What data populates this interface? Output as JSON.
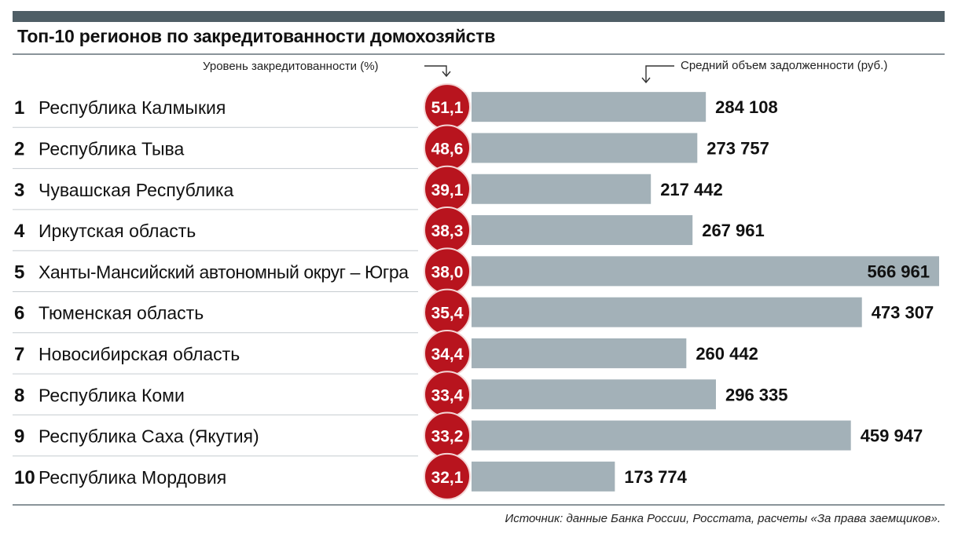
{
  "colors": {
    "top_bar": "#4f5e66",
    "rule": "#8a949a",
    "bar": "#a3b1b8",
    "circle": "#b8141e",
    "circle_border": "#f3d6d6",
    "row_divider": "#c6ccd0",
    "text": "#111111"
  },
  "header": {
    "title": "Топ-10 регионов по закредитованности домохозяйств",
    "left_label": "Уровень закредитованности (%)",
    "right_label": "Средний объем задолженности (руб.)"
  },
  "footer": {
    "source": "Источник: данные Банка России, Росстата, расчеты «За права заемщиков»."
  },
  "chart_data": {
    "type": "bar",
    "orientation": "horizontal",
    "title": "Топ-10 регионов по закредитованности домохозяйств",
    "ranks": [
      "1",
      "2",
      "3",
      "4",
      "5",
      "6",
      "7",
      "8",
      "9",
      "10"
    ],
    "categories": [
      "Республика Калмыкия",
      "Республика Тыва",
      "Чувашская Республика",
      "Иркутская область",
      "Ханты-Мансийский автономный округ – Югра",
      "Тюменская область",
      "Новосибирская область",
      "Республика Коми",
      "Республика Саха (Якутия)",
      "Республика Мордовия"
    ],
    "series": [
      {
        "name": "Уровень закредитованности (%)",
        "values": [
          51.1,
          48.6,
          39.1,
          38.3,
          38.0,
          35.4,
          34.4,
          33.4,
          33.2,
          32.1
        ],
        "labels": [
          "51,1",
          "48,6",
          "39,1",
          "38,3",
          "38,0",
          "35,4",
          "34,4",
          "33,4",
          "33,2",
          "32,1"
        ]
      },
      {
        "name": "Средний объем задолженности (руб.)",
        "values": [
          284108,
          273757,
          217442,
          267961,
          566961,
          473307,
          260442,
          296335,
          459947,
          173774
        ],
        "labels": [
          "284 108",
          "273 757",
          "217 442",
          "267 961",
          "566 961",
          "473 307",
          "260 442",
          "296 335",
          "459 947",
          "173 774"
        ]
      }
    ],
    "xlim": [
      0,
      566961
    ]
  }
}
